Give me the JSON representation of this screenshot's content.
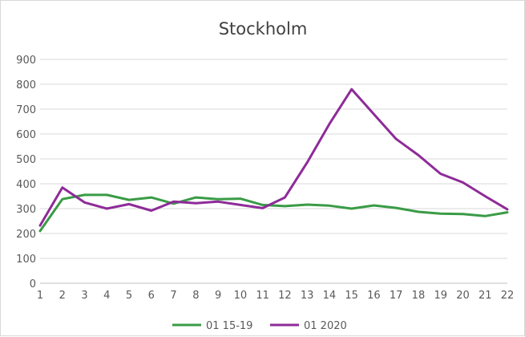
{
  "chart_data": {
    "type": "line",
    "title": "Stockholm",
    "xlabel": "",
    "ylabel": "",
    "x": [
      1,
      2,
      3,
      4,
      5,
      6,
      7,
      8,
      9,
      10,
      11,
      12,
      13,
      14,
      15,
      16,
      17,
      18,
      19,
      20,
      21,
      22
    ],
    "ylim": [
      0,
      900
    ],
    "yticks": [
      0,
      100,
      200,
      300,
      400,
      500,
      600,
      700,
      800,
      900
    ],
    "grid": true,
    "legend_position": "bottom",
    "series": [
      {
        "name": "01 15-19",
        "color": "#3a9b46",
        "values": [
          210,
          338,
          355,
          355,
          335,
          345,
          320,
          345,
          338,
          340,
          315,
          310,
          316,
          312,
          300,
          313,
          303,
          287,
          280,
          278,
          270,
          285
        ]
      },
      {
        "name": "01 2020",
        "color": "#8e2b98",
        "values": [
          232,
          385,
          325,
          300,
          318,
          292,
          328,
          322,
          328,
          315,
          302,
          345,
          485,
          640,
          780,
          680,
          580,
          515,
          440,
          405,
          350,
          297
        ]
      }
    ]
  }
}
